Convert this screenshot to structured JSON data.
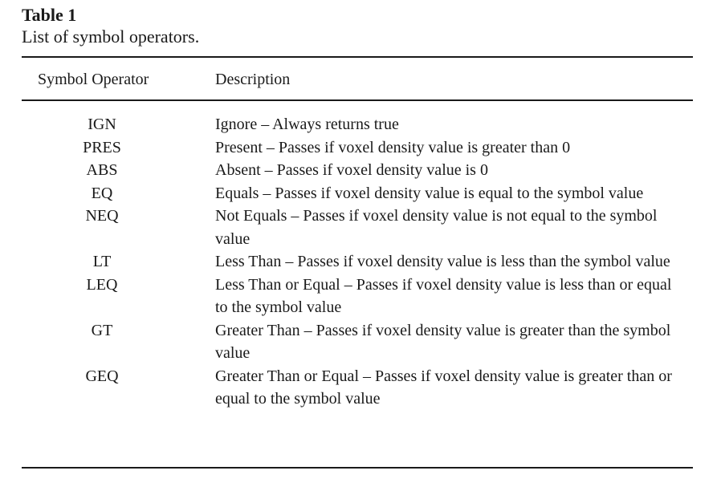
{
  "caption": {
    "label": "Table 1",
    "text": "List of symbol operators."
  },
  "header": {
    "symbol": "Symbol Operator",
    "description": "Description"
  },
  "rows": [
    {
      "symbol": "IGN",
      "description": "Ignore – Always returns true"
    },
    {
      "symbol": "PRES",
      "description": "Present – Passes if voxel density value is greater than 0"
    },
    {
      "symbol": "ABS",
      "description": "Absent – Passes if voxel density value is 0"
    },
    {
      "symbol": "EQ",
      "description": "Equals – Passes if voxel density value is equal to the symbol value"
    },
    {
      "symbol": "NEQ",
      "description": "Not Equals – Passes if voxel density value is not equal to the symbol value"
    },
    {
      "symbol": "LT",
      "description": "Less Than – Passes if voxel density value is less than the symbol value"
    },
    {
      "symbol": "LEQ",
      "description": "Less Than or Equal – Passes if voxel density value is less than or equal to the symbol value"
    },
    {
      "symbol": "GT",
      "description": "Greater Than – Passes if voxel density value is greater than the symbol value"
    },
    {
      "symbol": "GEQ",
      "description": "Greater Than or Equal – Passes if voxel density value is greater than or equal to the symbol value"
    }
  ]
}
